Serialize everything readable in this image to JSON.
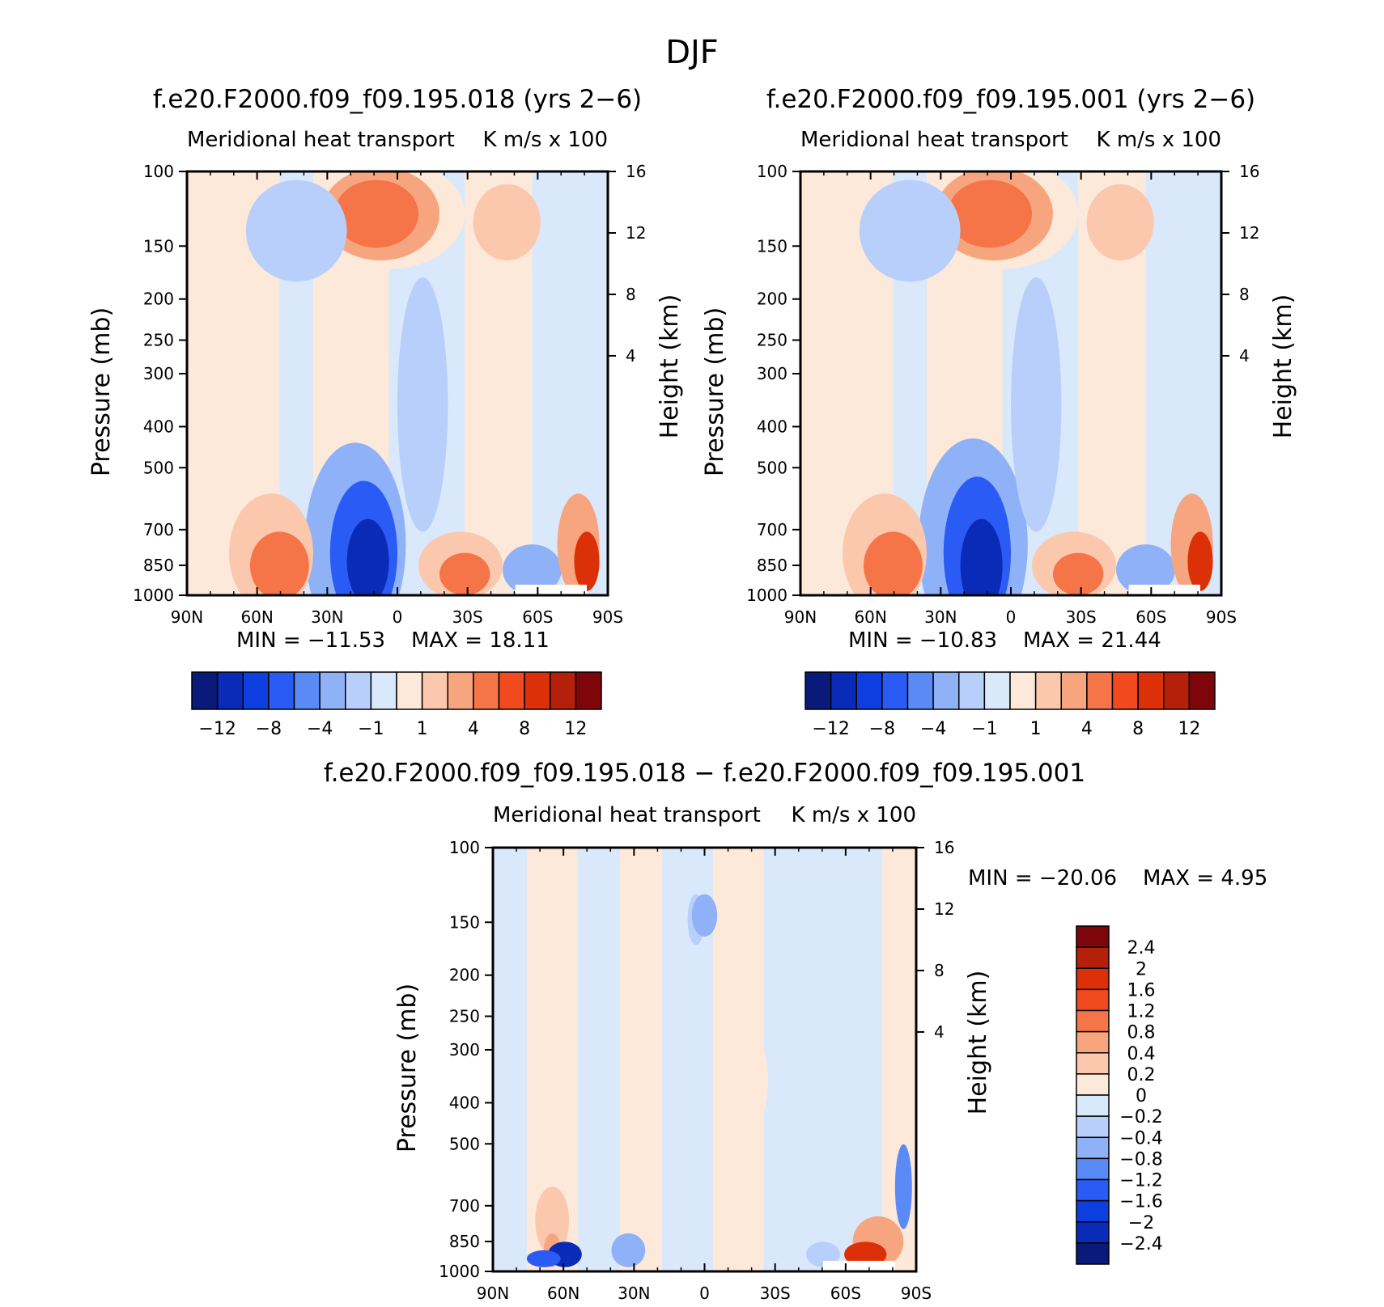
{
  "figure_title": "DJF",
  "colors": {
    "main_scale": [
      "#0a1a7a",
      "#0a2bb8",
      "#0d3ee0",
      "#2a5cf5",
      "#5a8af5",
      "#8fb1f7",
      "#b9cffb",
      "#d9e8fb",
      "#fde9da",
      "#fbc8ad",
      "#f7a57e",
      "#f57548",
      "#f04a1e",
      "#dc3008",
      "#b4200a",
      "#7e0509"
    ],
    "diff_scale": [
      "#0a1a7a",
      "#0a2bb8",
      "#0d3ee0",
      "#2a5cf5",
      "#5a8af5",
      "#8fb1f7",
      "#b9cffb",
      "#d9e8fb",
      "#fde9da",
      "#fbc8ad",
      "#f7a57e",
      "#f57548",
      "#f04a1e",
      "#dc3008",
      "#b4200a",
      "#7e0509"
    ],
    "axis": "#000000",
    "background": "#ffffff"
  },
  "chart_data": [
    {
      "type": "contour",
      "title": "f.e20.F2000.f09_f09.195.018 (yrs 2−6)",
      "subtitle_left": "Meridional heat transport",
      "subtitle_right": "K m/s x 100",
      "ylabel": "Pressure (mb)",
      "ylabel_right": "Height (km)",
      "x_ticks": [
        "90N",
        "60N",
        "30N",
        "0",
        "30S",
        "60S",
        "90S"
      ],
      "x_values": [
        90,
        60,
        30,
        0,
        -30,
        -60,
        -90
      ],
      "y_ticks": [
        "100",
        "150",
        "200",
        "250",
        "300",
        "400",
        "500",
        "700",
        "850",
        "1000"
      ],
      "y_values": [
        100,
        150,
        200,
        250,
        300,
        400,
        500,
        700,
        850,
        1000
      ],
      "right_ticks": [
        "16",
        "12",
        "8",
        "4"
      ],
      "right_values": [
        16,
        12,
        8,
        4
      ],
      "min_label": "MIN = −11.53",
      "max_label": "MAX =   18.11",
      "min": -11.53,
      "max": 18.11,
      "colorbar_labels": [
        "−12",
        "−8",
        "−4",
        "−1",
        "1",
        "4",
        "8",
        "12"
      ],
      "colorbar_levels": [
        -12,
        -10,
        -8,
        -6,
        -4,
        -2,
        -1,
        0,
        1,
        2,
        4,
        6,
        8,
        10,
        12
      ]
    },
    {
      "type": "contour",
      "title": "f.e20.F2000.f09_f09.195.001 (yrs 2−6)",
      "subtitle_left": "Meridional heat transport",
      "subtitle_right": "K m/s x 100",
      "ylabel": "Pressure (mb)",
      "ylabel_right": "Height (km)",
      "x_ticks": [
        "90N",
        "60N",
        "30N",
        "0",
        "30S",
        "60S",
        "90S"
      ],
      "x_values": [
        90,
        60,
        30,
        0,
        -30,
        -60,
        -90
      ],
      "y_ticks": [
        "100",
        "150",
        "200",
        "250",
        "300",
        "400",
        "500",
        "700",
        "850",
        "1000"
      ],
      "y_values": [
        100,
        150,
        200,
        250,
        300,
        400,
        500,
        700,
        850,
        1000
      ],
      "right_ticks": [
        "16",
        "12",
        "8",
        "4"
      ],
      "right_values": [
        16,
        12,
        8,
        4
      ],
      "min_label": "MIN = −10.83",
      "max_label": "MAX =   21.44",
      "min": -10.83,
      "max": 21.44,
      "colorbar_labels": [
        "−12",
        "−8",
        "−4",
        "−1",
        "1",
        "4",
        "8",
        "12"
      ],
      "colorbar_levels": [
        -12,
        -10,
        -8,
        -6,
        -4,
        -2,
        -1,
        0,
        1,
        2,
        4,
        6,
        8,
        10,
        12
      ]
    },
    {
      "type": "contour",
      "title": "f.e20.F2000.f09_f09.195.018 − f.e20.F2000.f09_f09.195.001",
      "subtitle_left": "Meridional heat transport",
      "subtitle_right": "K m/s x 100",
      "ylabel": "Pressure (mb)",
      "ylabel_right": "Height (km)",
      "x_ticks": [
        "90N",
        "60N",
        "30N",
        "0",
        "30S",
        "60S",
        "90S"
      ],
      "x_values": [
        90,
        60,
        30,
        0,
        -30,
        -60,
        -90
      ],
      "y_ticks": [
        "100",
        "150",
        "200",
        "250",
        "300",
        "400",
        "500",
        "700",
        "850",
        "1000"
      ],
      "y_values": [
        100,
        150,
        200,
        250,
        300,
        400,
        500,
        700,
        850,
        1000
      ],
      "right_ticks": [
        "16",
        "12",
        "8",
        "4"
      ],
      "right_values": [
        16,
        12,
        8,
        4
      ],
      "min_label": "MIN = −20.06",
      "max_label": "MAX =     4.95",
      "min": -20.06,
      "max": 4.95,
      "colorbar_labels": [
        "2.4",
        "2",
        "1.6",
        "1.2",
        "0.8",
        "0.4",
        "0.2",
        "0",
        "−0.2",
        "−0.4",
        "−0.8",
        "−1.2",
        "−1.6",
        "−2",
        "−2.4"
      ],
      "colorbar_levels": [
        2.4,
        2,
        1.6,
        1.2,
        0.8,
        0.4,
        0.2,
        0,
        -0.2,
        -0.4,
        -0.8,
        -1.2,
        -1.6,
        -2,
        -2.4
      ]
    }
  ]
}
